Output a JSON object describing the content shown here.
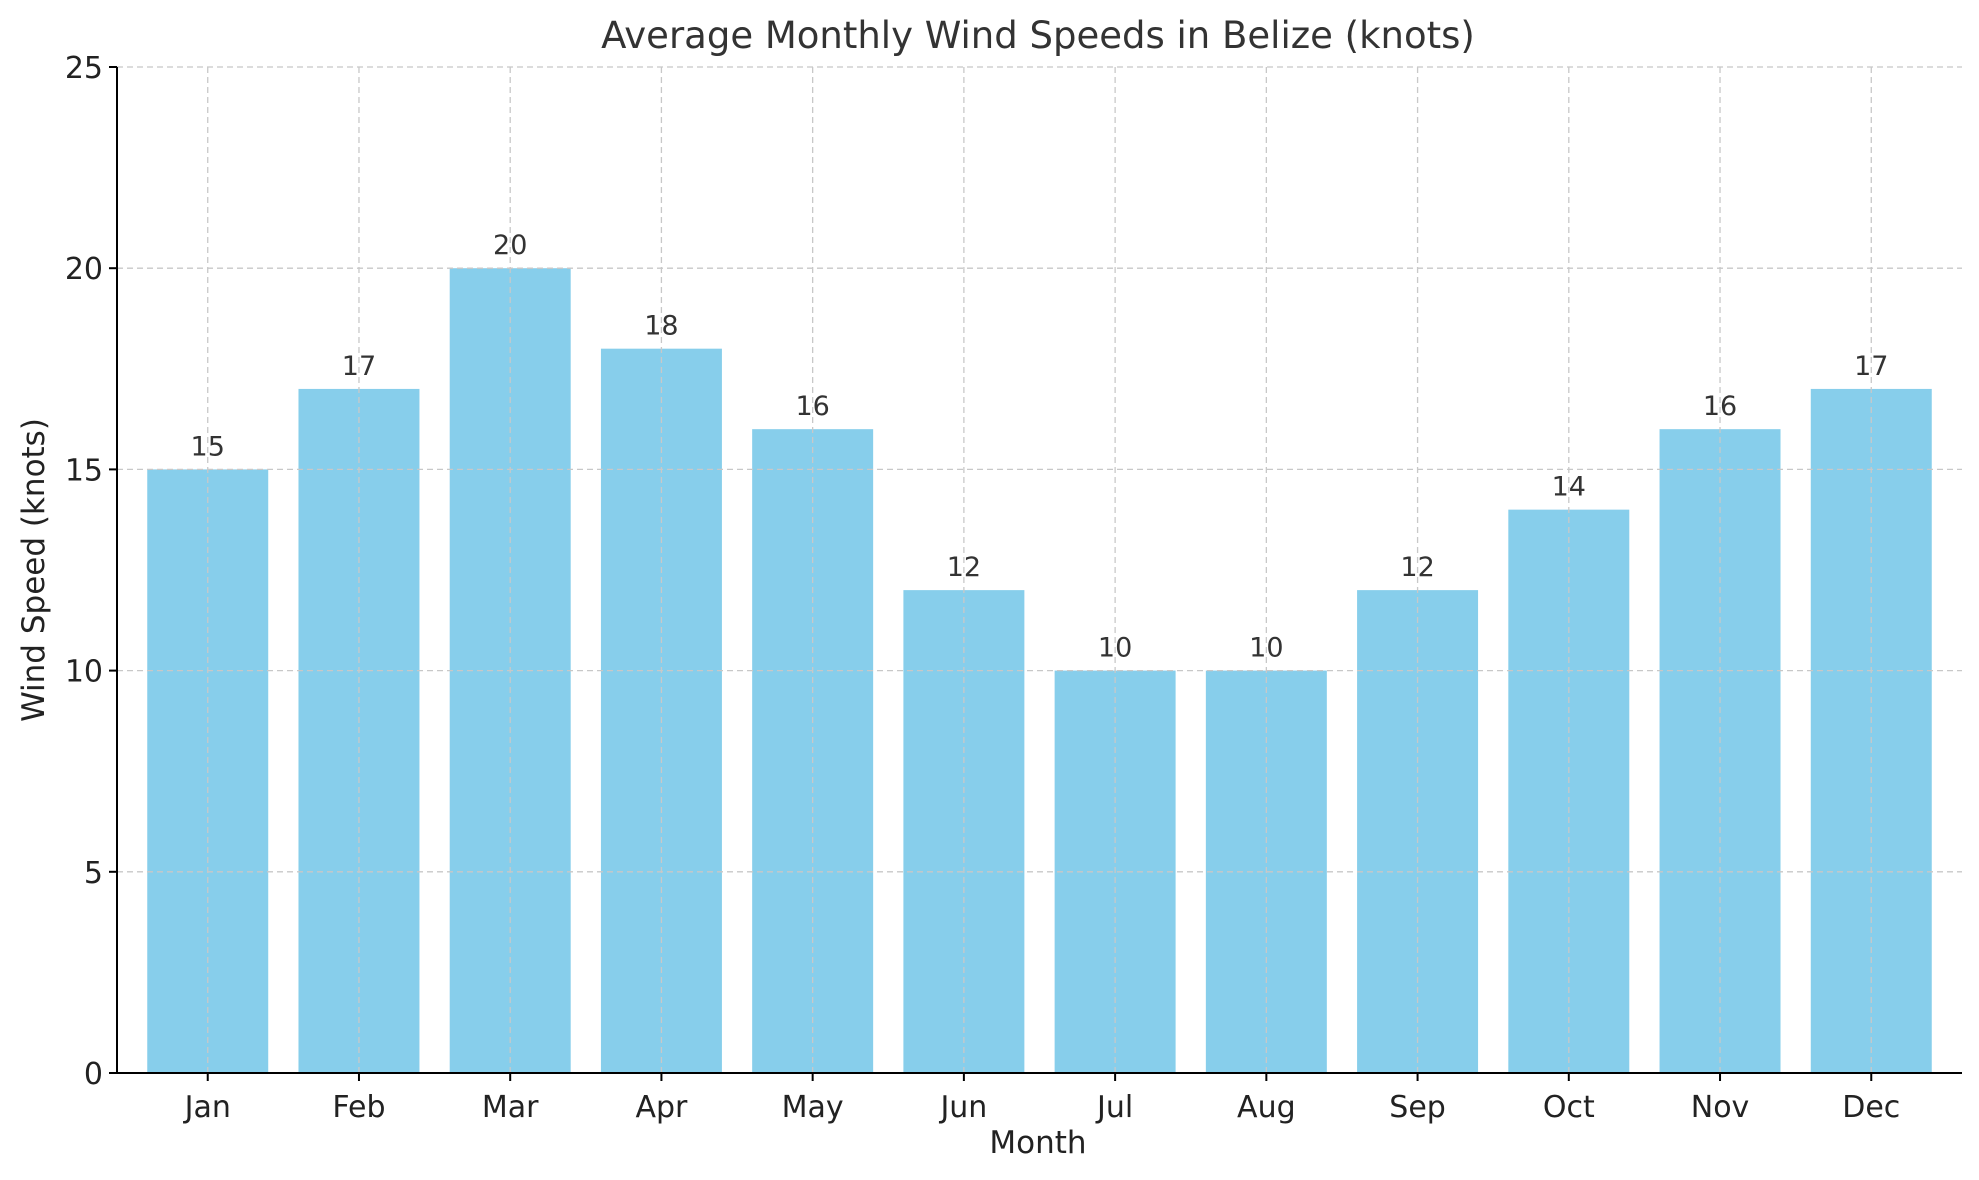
{
  "chart_data": {
    "type": "bar",
    "title": "Average Monthly Wind Speeds in Belize (knots)",
    "xlabel": "Month",
    "ylabel": "Wind Speed (knots)",
    "categories": [
      "Jan",
      "Feb",
      "Mar",
      "Apr",
      "May",
      "Jun",
      "Jul",
      "Aug",
      "Sep",
      "Oct",
      "Nov",
      "Dec"
    ],
    "values": [
      15,
      17,
      20,
      18,
      16,
      12,
      10,
      10,
      12,
      14,
      16,
      17
    ],
    "data_labels": [
      "15",
      "17",
      "20",
      "18",
      "16",
      "12",
      "10",
      "10",
      "12",
      "14",
      "16",
      "17"
    ],
    "ylim": [
      0,
      25
    ],
    "yticks": [
      0,
      5,
      10,
      15,
      20,
      25
    ],
    "ytick_labels": [
      "0",
      "5",
      "10",
      "15",
      "20",
      "25"
    ],
    "grid": true,
    "bar_color": "#87CEEB"
  }
}
